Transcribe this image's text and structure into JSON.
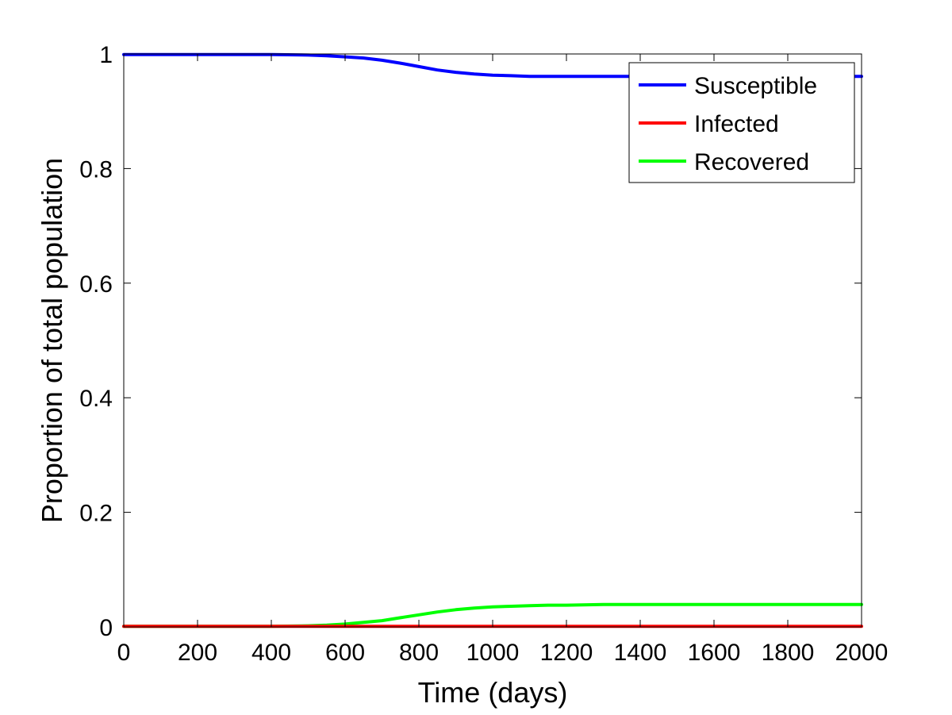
{
  "chart_data": {
    "type": "line",
    "xlabel": "Time (days)",
    "ylabel": "Proportion of total population",
    "xlim": [
      0,
      2000
    ],
    "ylim": [
      0,
      1
    ],
    "xticks": [
      "0",
      "200",
      "400",
      "600",
      "800",
      "1000",
      "1200",
      "1400",
      "1600",
      "1800",
      "2000"
    ],
    "yticks": [
      "0",
      "0.2",
      "0.4",
      "0.6",
      "0.8",
      "1"
    ],
    "grid": false,
    "legend_position": "top-right",
    "x": [
      0,
      100,
      200,
      300,
      400,
      500,
      550,
      600,
      650,
      700,
      750,
      800,
      850,
      900,
      950,
      1000,
      1050,
      1100,
      1150,
      1200,
      1300,
      1400,
      1500,
      1600,
      1700,
      1800,
      1900,
      2000
    ],
    "series": [
      {
        "name": "Susceptible",
        "color": "#0000ff",
        "values": [
          0.999,
          0.999,
          0.999,
          0.999,
          0.999,
          0.998,
          0.997,
          0.995,
          0.993,
          0.989,
          0.984,
          0.978,
          0.972,
          0.968,
          0.965,
          0.963,
          0.962,
          0.961,
          0.961,
          0.961,
          0.961,
          0.961,
          0.961,
          0.961,
          0.961,
          0.961,
          0.961,
          0.961
        ]
      },
      {
        "name": "Infected",
        "color": "#ff0000",
        "values": [
          0.001,
          0.001,
          0.001,
          0.001,
          0.001,
          0.001,
          0.001,
          0.001,
          0.001,
          0.001,
          0.001,
          0.001,
          0.001,
          0.001,
          0.001,
          0.001,
          0.001,
          0.001,
          0.001,
          0.001,
          0.001,
          0.001,
          0.001,
          0.001,
          0.001,
          0.001,
          0.001,
          0.001
        ]
      },
      {
        "name": "Recovered",
        "color": "#00ff00",
        "values": [
          0.001,
          0.001,
          0.001,
          0.001,
          0.001,
          0.002,
          0.003,
          0.005,
          0.008,
          0.011,
          0.016,
          0.021,
          0.026,
          0.03,
          0.033,
          0.035,
          0.036,
          0.037,
          0.038,
          0.038,
          0.039,
          0.039,
          0.039,
          0.039,
          0.039,
          0.039,
          0.039,
          0.039
        ]
      }
    ]
  }
}
